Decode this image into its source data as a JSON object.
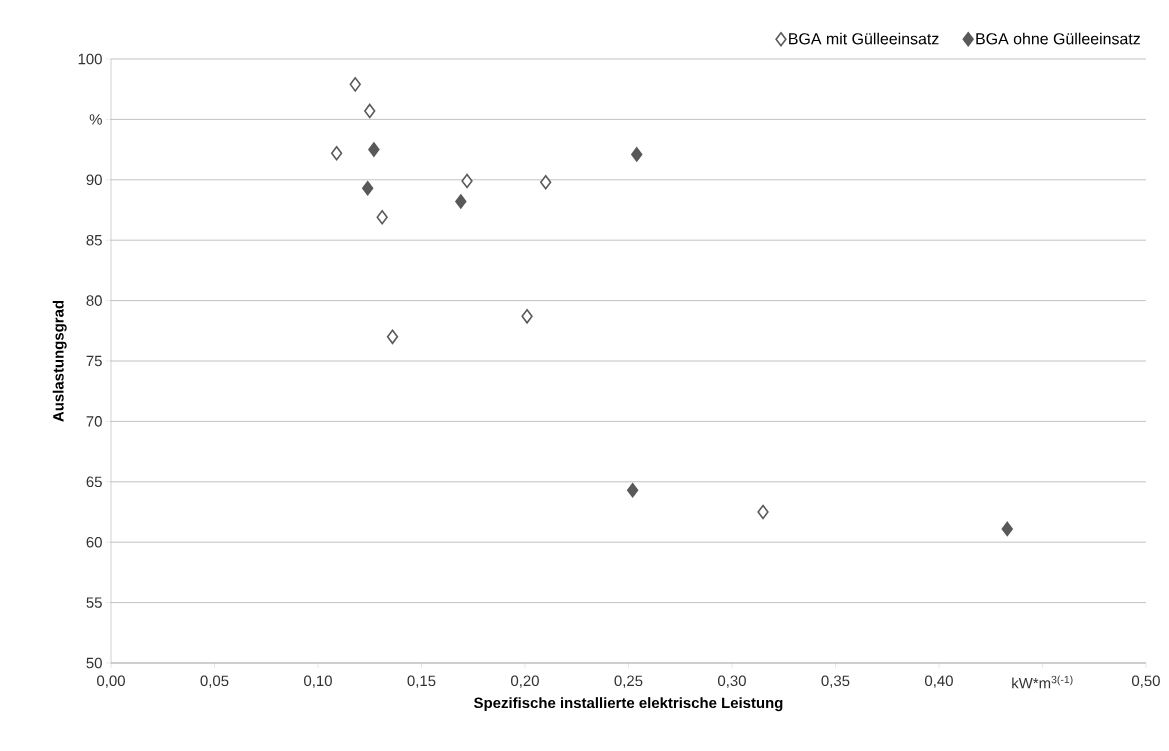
{
  "chart_data": {
    "type": "scatter",
    "xlabel": "Spezifische installierte elektrische Leistung",
    "ylabel": "Auslastungsgrad",
    "xlim": [
      0,
      0.5
    ],
    "ylim": [
      50,
      100
    ],
    "xticks": [
      {
        "value": 0,
        "label": "0,00"
      },
      {
        "value": 0.05,
        "label": "0,05"
      },
      {
        "value": 0.1,
        "label": "0,10"
      },
      {
        "value": 0.15,
        "label": "0,15"
      },
      {
        "value": 0.2,
        "label": "0,20"
      },
      {
        "value": 0.25,
        "label": "0,25"
      },
      {
        "value": 0.3,
        "label": "0,30"
      },
      {
        "value": 0.35,
        "label": "0,35"
      },
      {
        "value": 0.4,
        "label": "0,40"
      },
      {
        "value": 0.45,
        "label": "kW*m$^{3(-1)}$"
      },
      {
        "value": 0.5,
        "label": "0,50"
      }
    ],
    "yticks": [
      50,
      55,
      60,
      65,
      70,
      75,
      80,
      85,
      90,
      {
        "value": 95,
        "label": "%"
      },
      100
    ],
    "grid": "y",
    "legend": "top right",
    "marker": "diamond",
    "series": [
      {
        "name": "BGA mit Gülleeinsatz",
        "color": "#595959",
        "x": [
          0.118,
          0.125,
          0.109,
          0.172,
          0.21,
          0.131,
          0.136,
          0.201,
          0.315
        ],
        "values": [
          97.9,
          95.7,
          92.2,
          89.9,
          89.8,
          86.9,
          77.0,
          78.7,
          62.5
        ]
      },
      {
        "name": "BGA ohne Gülleeinsatz",
        "color": "#595959",
        "x": [
          0.127,
          0.124,
          0.169,
          0.254,
          0.252,
          0.433
        ],
        "values": [
          92.5,
          89.3,
          88.2,
          92.1,
          64.3,
          61.1
        ]
      }
    ]
  }
}
